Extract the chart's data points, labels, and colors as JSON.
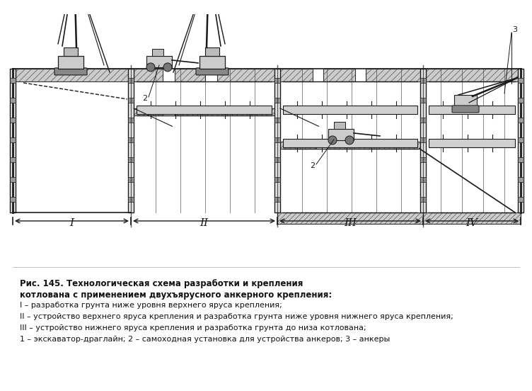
{
  "title_line1": "Рис. 145. Технологическая схема разработки и крепления",
  "title_line2": "котлована с применением двухъярусного анкерного крепления:",
  "legend_lines": [
    "I – разработка грунта ниже уровня верхнего яруса крепления;",
    "II – устройство верхнего яруса крепления и разработка грунта ниже уровня нижнего яруса крепления;",
    "III – устройство нижнего яруса крепления и разработка грунта до низа котлована;",
    "1 – экскаватор-драглайн; 2 – самоходная установка для устройства анкеров; 3 – анкеры"
  ],
  "bg_color": "#ffffff",
  "lc": "#1a1a1a",
  "fig_width": 7.52,
  "fig_height": 5.52,
  "dpi": 100
}
